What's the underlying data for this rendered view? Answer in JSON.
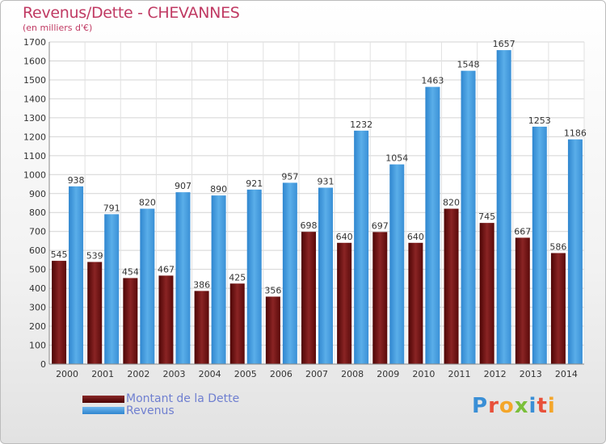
{
  "title": "Revenus/Dette - CHEVANNES",
  "subtitle": "(en milliers d'€)",
  "logo": {
    "text": "Proxiti",
    "colors": [
      "#3a8fd6",
      "#e8503a",
      "#f4a62a",
      "#7bbf3a",
      "#3a8fd6",
      "#e8503a",
      "#f4a62a"
    ]
  },
  "chart_data": {
    "type": "bar",
    "categories": [
      "2000",
      "2001",
      "2002",
      "2003",
      "2004",
      "2005",
      "2006",
      "2007",
      "2008",
      "2009",
      "2010",
      "2011",
      "2012",
      "2013",
      "2014"
    ],
    "series": [
      {
        "name": "Montant de la Dette",
        "color": "#6b0f0f",
        "values": [
          545,
          539,
          454,
          467,
          386,
          425,
          356,
          698,
          640,
          697,
          640,
          820,
          745,
          667,
          586
        ]
      },
      {
        "name": "Revenus",
        "color": "#3f97dc",
        "values": [
          938,
          791,
          820,
          907,
          890,
          921,
          957,
          931,
          1232,
          1054,
          1463,
          1548,
          1657,
          1253,
          1186
        ]
      }
    ],
    "ylim": [
      0,
      1700
    ],
    "yticks": [
      0,
      100,
      200,
      300,
      400,
      500,
      600,
      700,
      800,
      900,
      1000,
      1100,
      1200,
      1300,
      1400,
      1500,
      1600,
      1700
    ],
    "grid": true,
    "legend": "bottom-left"
  }
}
